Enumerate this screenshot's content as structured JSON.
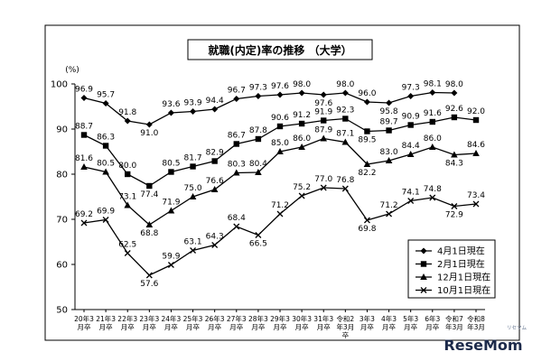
{
  "chart_data": {
    "type": "line",
    "title": "就職(内定)率の推移 （大学）",
    "unit_label": "(%)",
    "ylim": [
      50,
      100
    ],
    "yticks": [
      50,
      60,
      70,
      80,
      90,
      100
    ],
    "grid": false,
    "legend_position": "bottom-right",
    "categories": [
      [
        "20年3",
        "月卒"
      ],
      [
        "21年3",
        "月卒"
      ],
      [
        "22年3",
        "月卒"
      ],
      [
        "23年3",
        "月卒"
      ],
      [
        "24年3",
        "月卒"
      ],
      [
        "25年3",
        "月卒"
      ],
      [
        "26年3",
        "月卒"
      ],
      [
        "27年3",
        "月卒"
      ],
      [
        "28年3",
        "月卒"
      ],
      [
        "29年3",
        "月卒"
      ],
      [
        "30年3",
        "月卒"
      ],
      [
        "31年3",
        "月卒"
      ],
      [
        "令和2",
        "年3月",
        "卒"
      ],
      [
        "3年3",
        "月卒"
      ],
      [
        "4年3",
        "月卒"
      ],
      [
        "5年3",
        "月卒"
      ],
      [
        "6年3",
        "月卒"
      ],
      [
        "令和7",
        "年3月"
      ],
      [
        "令和8",
        "年3月"
      ]
    ],
    "series": [
      {
        "name": "4月1日現在",
        "marker": "diamond",
        "values": [
          96.9,
          95.7,
          91.8,
          91.0,
          93.6,
          93.9,
          94.4,
          96.7,
          97.3,
          97.6,
          98.0,
          97.6,
          98.0,
          96.0,
          95.8,
          97.3,
          98.1,
          98.0,
          null
        ]
      },
      {
        "name": "2月1日現在",
        "marker": "square",
        "values": [
          88.7,
          86.3,
          80.0,
          77.4,
          80.5,
          81.7,
          82.9,
          86.7,
          87.8,
          90.6,
          91.2,
          91.9,
          92.3,
          89.5,
          89.7,
          90.9,
          91.6,
          92.6,
          92.0
        ]
      },
      {
        "name": "12月1日現在",
        "marker": "triangle",
        "values": [
          81.6,
          80.5,
          73.1,
          68.8,
          71.9,
          75.0,
          76.6,
          80.3,
          80.4,
          85.0,
          86.0,
          87.9,
          87.1,
          82.2,
          83.0,
          84.4,
          86.0,
          84.3,
          84.6
        ]
      },
      {
        "name": "10月1日現在",
        "marker": "x",
        "values": [
          69.2,
          69.9,
          62.5,
          57.6,
          59.9,
          63.1,
          64.3,
          68.4,
          66.5,
          71.2,
          75.2,
          77.0,
          76.8,
          69.8,
          71.2,
          74.1,
          74.8,
          72.9,
          73.4
        ]
      }
    ]
  },
  "watermark": {
    "text": "ReseMom",
    "subtext": "リセマム"
  }
}
